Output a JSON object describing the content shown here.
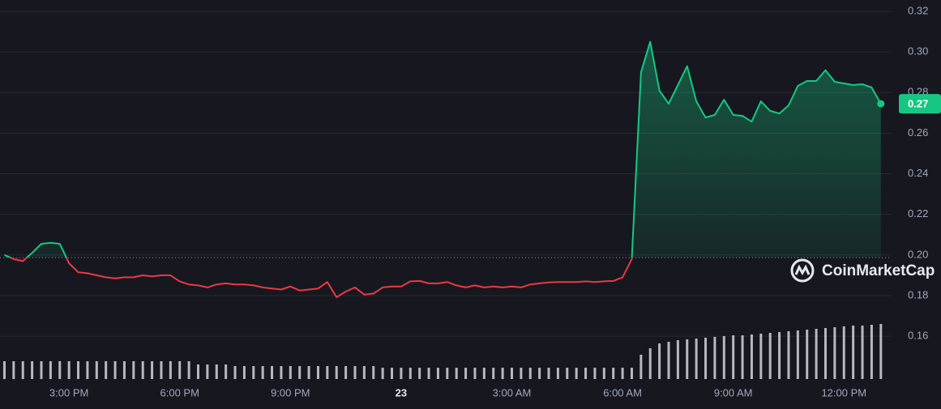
{
  "chart_data": {
    "type": "line",
    "x": [
      13.25,
      13.5,
      13.75,
      14,
      14.25,
      14.5,
      14.75,
      15,
      15.25,
      15.5,
      15.75,
      16,
      16.25,
      16.5,
      16.75,
      17,
      17.25,
      17.5,
      17.75,
      18,
      18.25,
      18.5,
      18.75,
      19,
      19.25,
      19.5,
      19.75,
      20,
      20.25,
      20.5,
      20.75,
      21,
      21.25,
      21.5,
      21.75,
      22,
      22.25,
      22.5,
      22.75,
      23,
      23.25,
      23.5,
      23.75,
      24,
      24.25,
      24.5,
      24.75,
      25,
      25.25,
      25.5,
      25.75,
      26,
      26.25,
      26.5,
      26.75,
      27,
      27.25,
      27.5,
      27.75,
      28,
      28.25,
      28.5,
      28.75,
      29,
      29.25,
      29.5,
      29.75,
      30,
      30.25,
      30.5,
      30.75,
      31,
      31.25,
      31.5,
      31.75,
      32,
      32.25,
      32.5,
      32.75,
      33,
      33.25,
      33.5,
      33.75,
      34,
      34.25,
      34.5,
      34.75,
      35,
      35.25,
      35.5,
      35.75,
      36,
      36.25,
      36.5,
      36.75,
      37
    ],
    "values": [
      0.2,
      0.198,
      0.197,
      0.201,
      0.2055,
      0.206,
      0.2055,
      0.196,
      0.1915,
      0.191,
      0.19,
      0.189,
      0.1885,
      0.189,
      0.189,
      0.19,
      0.1895,
      0.19,
      0.19,
      0.187,
      0.1855,
      0.185,
      0.184,
      0.1855,
      0.186,
      0.1855,
      0.1855,
      0.185,
      0.184,
      0.1835,
      0.183,
      0.1845,
      0.1825,
      0.183,
      0.1835,
      0.1867,
      0.1792,
      0.182,
      0.184,
      0.1805,
      0.181,
      0.184,
      0.1845,
      0.1845,
      0.187,
      0.1872,
      0.186,
      0.186,
      0.1867,
      0.185,
      0.184,
      0.185,
      0.184,
      0.1845,
      0.184,
      0.1845,
      0.184,
      0.1855,
      0.186,
      0.1865,
      0.1867,
      0.1867,
      0.1867,
      0.187,
      0.1867,
      0.187,
      0.1872,
      0.189,
      0.198,
      0.29,
      0.305,
      0.281,
      0.2745,
      0.2837,
      0.293,
      0.2757,
      0.2677,
      0.269,
      0.2765,
      0.269,
      0.2685,
      0.2657,
      0.2757,
      0.271,
      0.2697,
      0.2737,
      0.2833,
      0.2857,
      0.2857,
      0.291,
      0.2853,
      0.2845,
      0.2837,
      0.2841,
      0.2825,
      0.2745
    ],
    "up_color": "#16c784",
    "down_color": "#ea3943",
    "baseline": 0.1987,
    "last_label": {
      "value": 0.2745,
      "label": "0.27"
    },
    "volume": {
      "color": "#d4d6dc",
      "y2lim": [
        0,
        100
      ],
      "values": [
        22,
        22,
        22,
        22,
        22,
        22,
        22,
        22,
        22,
        22,
        22,
        22,
        22,
        22,
        22,
        22,
        22,
        22,
        22,
        22,
        22,
        18,
        18,
        18,
        18,
        16,
        16,
        16,
        16,
        16,
        16,
        16,
        16,
        16,
        16,
        16,
        16,
        16,
        16,
        16,
        16,
        14,
        14,
        14,
        14,
        14,
        14,
        14,
        14,
        14,
        14,
        14,
        14,
        14,
        14,
        14,
        14,
        14,
        14,
        14,
        14,
        14,
        14,
        14,
        14,
        14,
        14,
        14,
        14,
        30,
        38,
        44,
        46,
        48,
        49,
        50,
        51,
        52,
        53,
        54,
        54,
        55,
        56,
        57,
        58,
        59,
        60,
        61,
        62,
        63,
        64,
        65,
        66,
        66,
        67,
        68
      ]
    },
    "xlim": [
      13.13,
      37.29
    ],
    "ylim": [
      0.1389,
      0.3256
    ],
    "xticks": [
      {
        "value": 15,
        "label": "3:00 PM"
      },
      {
        "value": 18,
        "label": "6:00 PM"
      },
      {
        "value": 21,
        "label": "9:00 PM"
      },
      {
        "value": 24,
        "label": "23",
        "bold": true
      },
      {
        "value": 27,
        "label": "3:00 AM"
      },
      {
        "value": 30,
        "label": "6:00 AM"
      },
      {
        "value": 33,
        "label": "9:00 AM"
      },
      {
        "value": 36,
        "label": "12:00 PM"
      }
    ],
    "yticks": [
      0.16,
      0.18,
      {
        "value": 0.2,
        "label": "0.20"
      },
      0.22,
      0.24,
      0.26,
      0.28,
      {
        "value": 0.3,
        "label": "0.30"
      },
      0.32
    ],
    "grid": true,
    "watermark": "CoinMarketCap"
  }
}
